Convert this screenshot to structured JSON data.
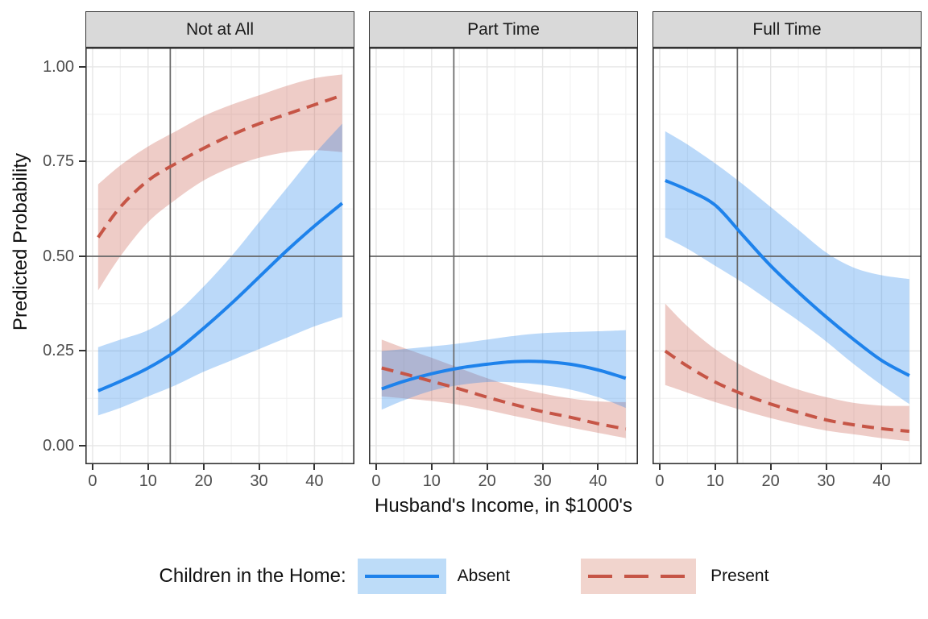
{
  "chart_data": {
    "type": "line",
    "title": "",
    "xlabel": "Husband's Income, in $1000's",
    "ylabel": "Predicted Probability",
    "x_ticks": [
      0,
      10,
      20,
      30,
      40
    ],
    "y_ticks": [
      {
        "value": 1.0,
        "label": "1.00"
      },
      {
        "value": 0.75,
        "label": "0.75"
      },
      {
        "value": 0.5,
        "label": "0.50"
      },
      {
        "value": 0.25,
        "label": "0.25"
      },
      {
        "value": 0.0,
        "label": "0.00"
      }
    ],
    "xlim": [
      -1.3,
      47.2
    ],
    "ylim": [
      -0.049,
      1.051
    ],
    "grid": {
      "major_x": [
        0,
        10,
        20,
        30,
        40
      ],
      "minor_x": [
        5,
        15,
        25,
        35,
        45
      ],
      "major_y": [
        0,
        0.25,
        0.5,
        0.75,
        1.0
      ],
      "minor_y": [
        0.125,
        0.375,
        0.625,
        0.875
      ]
    },
    "reference_lines": {
      "vertical_x": 14,
      "horizontal_y": 0.5
    },
    "x": [
      1,
      5,
      10,
      15,
      20,
      25,
      30,
      35,
      40,
      45
    ],
    "facets": [
      {
        "label": "Not at All",
        "series": [
          {
            "name": "Absent",
            "color": "#1E82EB",
            "linetype": "solid",
            "values": [
              0.145,
              0.17,
              0.205,
              0.25,
              0.31,
              0.375,
              0.445,
              0.515,
              0.58,
              0.64
            ],
            "lower": [
              0.08,
              0.1,
              0.13,
              0.16,
              0.195,
              0.225,
              0.255,
              0.285,
              0.315,
              0.34
            ],
            "upper": [
              0.26,
              0.28,
              0.305,
              0.35,
              0.42,
              0.5,
              0.59,
              0.68,
              0.77,
              0.85
            ]
          },
          {
            "name": "Present",
            "color": "#C65546",
            "linetype": "dashed",
            "values": [
              0.55,
              0.63,
              0.7,
              0.745,
              0.785,
              0.82,
              0.85,
              0.875,
              0.9,
              0.925
            ],
            "lower": [
              0.41,
              0.5,
              0.59,
              0.65,
              0.7,
              0.735,
              0.76,
              0.775,
              0.78,
              0.775
            ],
            "upper": [
              0.69,
              0.74,
              0.79,
              0.83,
              0.87,
              0.9,
              0.925,
              0.95,
              0.97,
              0.98
            ]
          }
        ]
      },
      {
        "label": "Part Time",
        "series": [
          {
            "name": "Absent",
            "color": "#1E82EB",
            "linetype": "solid",
            "values": [
              0.15,
              0.17,
              0.19,
              0.205,
              0.215,
              0.222,
              0.222,
              0.215,
              0.2,
              0.178
            ],
            "lower": [
              0.095,
              0.12,
              0.145,
              0.16,
              0.168,
              0.167,
              0.16,
              0.148,
              0.128,
              0.1
            ],
            "upper": [
              0.25,
              0.255,
              0.262,
              0.27,
              0.28,
              0.29,
              0.297,
              0.3,
              0.302,
              0.305
            ]
          },
          {
            "name": "Present",
            "color": "#C65546",
            "linetype": "dashed",
            "values": [
              0.205,
              0.19,
              0.17,
              0.15,
              0.128,
              0.108,
              0.09,
              0.075,
              0.058,
              0.044
            ],
            "lower": [
              0.13,
              0.125,
              0.118,
              0.108,
              0.094,
              0.078,
              0.063,
              0.048,
              0.034,
              0.02
            ],
            "upper": [
              0.28,
              0.258,
              0.232,
              0.205,
              0.178,
              0.155,
              0.138,
              0.125,
              0.117,
              0.115
            ]
          }
        ]
      },
      {
        "label": "Full Time",
        "series": [
          {
            "name": "Absent",
            "color": "#1E82EB",
            "linetype": "solid",
            "values": [
              0.7,
              0.675,
              0.635,
              0.555,
              0.475,
              0.405,
              0.34,
              0.28,
              0.225,
              0.185
            ],
            "lower": [
              0.55,
              0.52,
              0.475,
              0.43,
              0.38,
              0.33,
              0.275,
              0.215,
              0.16,
              0.11
            ],
            "upper": [
              0.83,
              0.795,
              0.745,
              0.69,
              0.63,
              0.57,
              0.51,
              0.47,
              0.45,
              0.44
            ]
          },
          {
            "name": "Present",
            "color": "#C65546",
            "linetype": "dashed",
            "values": [
              0.25,
              0.21,
              0.168,
              0.136,
              0.11,
              0.088,
              0.068,
              0.055,
              0.045,
              0.038
            ],
            "lower": [
              0.16,
              0.14,
              0.115,
              0.093,
              0.073,
              0.055,
              0.04,
              0.03,
              0.02,
              0.012
            ],
            "upper": [
              0.375,
              0.315,
              0.255,
              0.21,
              0.175,
              0.148,
              0.128,
              0.113,
              0.106,
              0.105
            ]
          }
        ]
      }
    ],
    "legend": {
      "title": "Children in the Home:",
      "items": [
        {
          "label": "Absent",
          "linetype": "solid",
          "color": "#1E82EB",
          "fill": "#BDDCF8"
        },
        {
          "label": "Present",
          "linetype": "dashed",
          "color": "#C65546",
          "fill": "#F1D4CD"
        }
      ]
    },
    "colors": {
      "ribbon_alpha": 0.3,
      "grid_major": "#E6E6E6",
      "grid_minor": "#F2F2F2",
      "panel_border": "#333333",
      "reference_line": "#666666",
      "strip_bg": "#D9D9D9",
      "axis_text": "#4D4D4D"
    }
  }
}
